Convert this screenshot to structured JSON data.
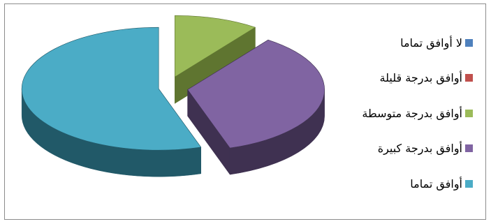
{
  "chart_data": {
    "type": "pie",
    "style": "3d-exploded",
    "legend_position": "right",
    "categories": [
      "لا أوافق تماما",
      "أوافق بدرجة قليلة",
      "أوافق بدرجة متوسطة",
      "أوافق بدرجة كبيرة",
      "أوافق تماما"
    ],
    "values": [
      0,
      0,
      10,
      35,
      55
    ],
    "colors": [
      "#4f81bd",
      "#c0504d",
      "#9bbb59",
      "#8064a2",
      "#4bacc6"
    ],
    "dark_colors": [
      "#2c4d75",
      "#772c2a",
      "#5f7530",
      "#3f3151",
      "#215968"
    ]
  }
}
